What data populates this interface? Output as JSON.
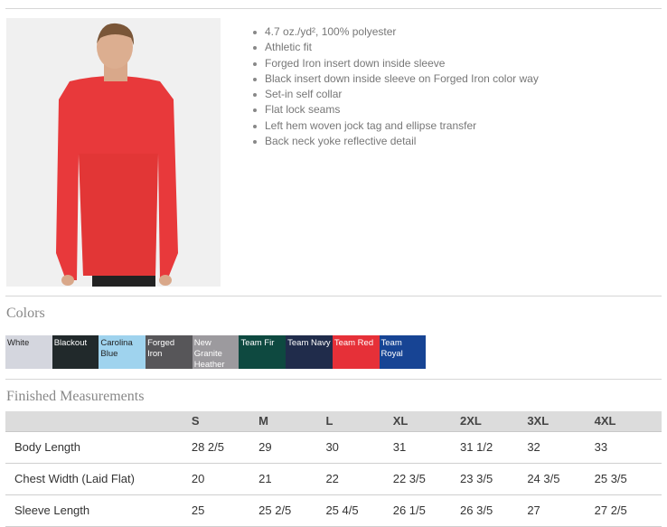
{
  "product": {
    "features": [
      "4.7 oz./yd², 100% polyester",
      "Athletic fit",
      "Forged Iron insert down inside sleeve",
      "Black insert down inside sleeve on Forged Iron color way",
      "Set-in self collar",
      "Flat lock seams",
      "Left hem woven jock tag and ellipse transfer",
      "Back neck yoke reflective detail"
    ],
    "shirt_color": "#e8393b"
  },
  "colors": {
    "title": "Colors",
    "swatches": [
      {
        "name": "White",
        "bg": "#d4d6de",
        "fg": "#222"
      },
      {
        "name": "Blackout",
        "bg": "#21292b",
        "fg": "#fff"
      },
      {
        "name": "Carolina Blue",
        "bg": "#9fd3ee",
        "fg": "#222"
      },
      {
        "name": "Forged Iron",
        "bg": "#575659",
        "fg": "#fff"
      },
      {
        "name": "New Granite Heather",
        "bg": "#9c9a9e",
        "fg": "#fff"
      },
      {
        "name": "Team Fir",
        "bg": "#0e4940",
        "fg": "#fff"
      },
      {
        "name": "Team Navy",
        "bg": "#202c4b",
        "fg": "#fff"
      },
      {
        "name": "Team Red",
        "bg": "#e63038",
        "fg": "#fff"
      },
      {
        "name": "Team Royal",
        "bg": "#174494",
        "fg": "#fff"
      }
    ]
  },
  "measurements": {
    "title": "Finished Measurements",
    "sizes": [
      "S",
      "M",
      "L",
      "XL",
      "2XL",
      "3XL",
      "4XL"
    ],
    "rows": [
      {
        "label": "Body Length",
        "values": [
          "28 2/5",
          "29",
          "30",
          "31",
          "31 1/2",
          "32",
          "33"
        ]
      },
      {
        "label": "Chest Width (Laid Flat)",
        "values": [
          "20",
          "21",
          "22",
          "22 3/5",
          "23 3/5",
          "24 3/5",
          "25 3/5"
        ]
      },
      {
        "label": "Sleeve Length",
        "values": [
          "25",
          "25 2/5",
          "25 4/5",
          "26 1/5",
          "26 3/5",
          "27",
          "27 2/5"
        ]
      }
    ]
  }
}
